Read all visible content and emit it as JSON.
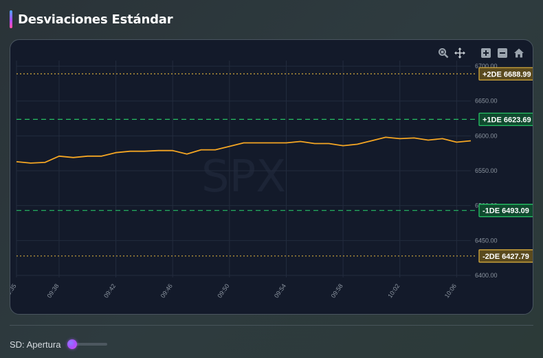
{
  "header": {
    "title": "Desviaciones Estándar"
  },
  "chart_data": {
    "type": "line",
    "watermark": "SPX",
    "x": [
      "09:35",
      "09:36",
      "09:37",
      "09:38",
      "09:39",
      "09:40",
      "09:41",
      "09:42",
      "09:43",
      "09:44",
      "09:45",
      "09:46",
      "09:47",
      "09:48",
      "09:49",
      "09:50",
      "09:51",
      "09:52",
      "09:53",
      "09:54",
      "09:55",
      "09:56",
      "09:57",
      "09:58",
      "09:59",
      "10:00",
      "10:01",
      "10:02",
      "10:03",
      "10:04",
      "10:05",
      "10:06",
      "10:07"
    ],
    "xticks": [
      "09:35",
      "09:38",
      "09:42",
      "09:46",
      "09:50",
      "09:54",
      "09:58",
      "10:02",
      "10:06"
    ],
    "series": [
      {
        "color": "#f5a623",
        "values": [
          6563,
          6561,
          6562,
          6571,
          6569,
          6571,
          6571,
          6576,
          6578,
          6578,
          6579,
          6579,
          6574,
          6580,
          6580,
          6585,
          6590,
          6590,
          6590,
          6590,
          6592,
          6589,
          6589,
          6586,
          6588,
          6593,
          6598,
          6596,
          6597,
          6594,
          6596,
          6591,
          6593
        ]
      }
    ],
    "ylim": [
      6397,
      6708
    ],
    "yticks": [
      "6400.00",
      "6450.00",
      "6500.00",
      "6550.00",
      "6600.00",
      "6650.00",
      "6700.00"
    ],
    "grid": true,
    "levels": [
      {
        "label": "+2DE 6688.99",
        "value": 6688.99,
        "color": "#d4a93c",
        "style": "dotted"
      },
      {
        "label": "+1DE 6623.69",
        "value": 6623.69,
        "color": "#26c165",
        "style": "dashed"
      },
      {
        "label": "-1DE 6493.09",
        "value": 6493.09,
        "color": "#26c165",
        "style": "dashed"
      },
      {
        "label": "-2DE 6427.79",
        "value": 6427.79,
        "color": "#d4a93c",
        "style": "dotted"
      }
    ]
  },
  "toolbar": {
    "icons": [
      "zoom-icon",
      "pan-icon",
      "zoom-in-icon",
      "zoom-out-icon",
      "reset-home-icon"
    ]
  },
  "footer": {
    "label": "SD: Apertura",
    "slider_value": 0
  }
}
